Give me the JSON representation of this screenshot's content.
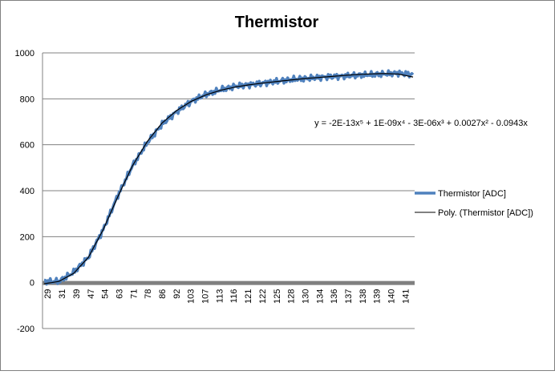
{
  "colors": {
    "series": "#4f81bd",
    "trend": "#000000",
    "grid": "#808080",
    "axis": "#808080",
    "xaxis_band": "#808080",
    "border": "#808080"
  },
  "chart_data": {
    "type": "line",
    "title": "Thermistor",
    "ylim": [
      -200,
      1000
    ],
    "yticks": [
      -200,
      0,
      200,
      400,
      600,
      800,
      1000
    ],
    "grid": true,
    "legend_position": "right",
    "x_categories": [
      "29",
      "31",
      "39",
      "47",
      "54",
      "63",
      "71",
      "78",
      "86",
      "92",
      "103",
      "107",
      "113",
      "116",
      "121",
      "122",
      "125",
      "128",
      "130",
      "134",
      "136",
      "137",
      "138",
      "139",
      "140",
      "141"
    ],
    "series": [
      {
        "name": "Thermistor [ADC]",
        "values": [
          5,
          5,
          45,
          110,
          230,
          380,
          510,
          610,
          690,
          745,
          790,
          820,
          840,
          855,
          862,
          870,
          878,
          885,
          890,
          895,
          898,
          902,
          905,
          908,
          912,
          905
        ]
      },
      {
        "name": "Poly. (Thermistor [ADC])",
        "values": [
          -5,
          5,
          40,
          110,
          230,
          375,
          510,
          615,
          695,
          750,
          790,
          818,
          838,
          852,
          862,
          870,
          877,
          884,
          890,
          895,
          900,
          905,
          908,
          910,
          908,
          895
        ]
      }
    ],
    "trendline_equation": "y = -2E-13x⁵ + 1E-09x⁴ - 3E-06x³ + 0.0027x² - 0.0943x"
  }
}
